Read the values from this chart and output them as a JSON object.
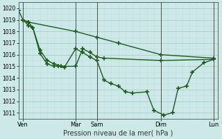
{
  "xlabel": "Pression niveau de la mer( hPa )",
  "ylim": [
    1010.5,
    1020.5
  ],
  "xlim": [
    0,
    14.0
  ],
  "yticks": [
    1011,
    1012,
    1013,
    1014,
    1015,
    1016,
    1017,
    1018,
    1019,
    1020
  ],
  "bg_color": "#cce8e8",
  "grid_major_color": "#aacccc",
  "grid_minor_color": "#c0dcdc",
  "line_color": "#1a5c1a",
  "xtick_labels": [
    "Ven",
    "Mar",
    "Sam",
    "Dim",
    "Lun"
  ],
  "xtick_positions": [
    0.3,
    4.0,
    5.5,
    10.0,
    13.7
  ],
  "vline_positions": [
    0.3,
    4.0,
    5.5,
    10.0,
    13.7
  ],
  "line1_x": [
    0.0,
    0.3,
    0.7,
    4.0,
    5.5,
    7.0,
    10.0,
    13.7
  ],
  "line1_y": [
    1019.8,
    1019.0,
    1018.8,
    1018.0,
    1017.5,
    1017.0,
    1016.0,
    1015.7
  ],
  "line2_x": [
    0.3,
    0.7,
    1.0,
    1.5,
    2.0,
    2.5,
    3.0,
    4.0,
    4.5,
    5.0,
    5.5,
    6.0,
    10.0,
    13.7
  ],
  "line2_y": [
    1019.0,
    1018.8,
    1018.3,
    1016.4,
    1015.5,
    1015.2,
    1015.0,
    1015.0,
    1016.5,
    1016.2,
    1015.8,
    1015.7,
    1015.5,
    1015.6
  ],
  "line3_x": [
    0.3,
    0.7,
    1.0,
    1.5,
    2.0,
    2.5,
    2.8,
    3.2,
    4.0,
    4.5,
    5.0,
    5.5,
    6.0,
    6.5,
    7.0,
    7.5,
    8.0,
    9.0,
    9.5,
    10.2,
    10.8,
    11.2,
    11.8,
    12.2,
    13.0,
    13.7
  ],
  "line3_y": [
    1019.0,
    1018.5,
    1018.3,
    1016.1,
    1015.2,
    1015.0,
    1015.0,
    1014.9,
    1016.5,
    1016.2,
    1015.8,
    1015.5,
    1013.8,
    1013.5,
    1013.3,
    1012.8,
    1012.7,
    1012.8,
    1011.2,
    1010.8,
    1011.0,
    1013.1,
    1013.3,
    1014.5,
    1015.3,
    1015.6
  ]
}
